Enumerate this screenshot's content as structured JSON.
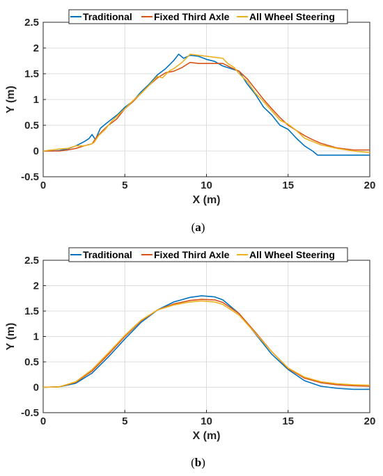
{
  "chart_data": [
    {
      "type": "line",
      "caption_pre": "(",
      "caption_letter": "a",
      "caption_post": ")",
      "xlabel": "X (m)",
      "ylabel": "Y (m)",
      "xlim": [
        0,
        20
      ],
      "ylim": [
        -0.5,
        2.5
      ],
      "xticks": [
        "0",
        "5",
        "10",
        "15",
        "20"
      ],
      "yticks": [
        "-0.5",
        "0",
        "0.5",
        "1",
        "1.5",
        "2",
        "2.5"
      ],
      "grid": true,
      "legend_position": "top",
      "series": [
        {
          "name": "Traditional",
          "color": "#0072BD",
          "x": [
            0,
            0.5,
            1,
            1.5,
            2,
            2.5,
            2.8,
            3.0,
            3.2,
            3.5,
            3.8,
            4.2,
            4.6,
            5.0,
            5.5,
            6.0,
            6.5,
            7.0,
            7.5,
            8.0,
            8.3,
            8.6,
            9.0,
            9.5,
            10.0,
            10.5,
            11.0,
            11.5,
            12.0,
            12.5,
            13.0,
            13.5,
            14.0,
            14.5,
            15.0,
            15.5,
            16.0,
            16.5,
            16.8,
            17.5,
            18.5,
            20
          ],
          "y": [
            0,
            0,
            0.01,
            0.04,
            0.1,
            0.18,
            0.24,
            0.32,
            0.22,
            0.44,
            0.52,
            0.62,
            0.72,
            0.85,
            0.97,
            1.15,
            1.3,
            1.48,
            1.6,
            1.76,
            1.88,
            1.8,
            1.86,
            1.84,
            1.78,
            1.74,
            1.65,
            1.6,
            1.55,
            1.3,
            1.1,
            0.85,
            0.7,
            0.5,
            0.42,
            0.25,
            0.1,
            0,
            -0.08,
            -0.08,
            -0.08,
            -0.08
          ]
        },
        {
          "name": "Fixed Third Axle",
          "color": "#D95319",
          "x": [
            0,
            0.5,
            1,
            1.5,
            2,
            2.5,
            3.0,
            3.3,
            3.6,
            4.0,
            4.5,
            5.0,
            5.5,
            6.0,
            6.5,
            7.0,
            7.5,
            8.0,
            8.5,
            9.0,
            9.5,
            10.0,
            10.5,
            11.0,
            11.5,
            12.0,
            12.5,
            13.0,
            13.5,
            14.0,
            14.5,
            15.0,
            15.5,
            16.0,
            16.5,
            17.0,
            18.0,
            19.0,
            20
          ],
          "y": [
            0,
            0,
            0,
            0.02,
            0.05,
            0.1,
            0.14,
            0.28,
            0.38,
            0.5,
            0.62,
            0.82,
            0.96,
            1.12,
            1.28,
            1.42,
            1.52,
            1.55,
            1.62,
            1.72,
            1.7,
            1.7,
            1.7,
            1.7,
            1.62,
            1.55,
            1.4,
            1.2,
            1.0,
            0.82,
            0.65,
            0.5,
            0.4,
            0.3,
            0.22,
            0.15,
            0.06,
            0.02,
            0.02
          ]
        },
        {
          "name": "All Wheel Steering",
          "color": "#EDB120",
          "x": [
            0,
            0.5,
            1,
            1.5,
            2,
            2.5,
            2.8,
            3.1,
            3.4,
            3.8,
            4.2,
            4.6,
            5.0,
            5.5,
            6.0,
            6.5,
            7.0,
            7.3,
            7.7,
            8.0,
            8.5,
            9.0,
            9.5,
            10.0,
            10.5,
            11.0,
            11.3,
            11.7,
            12.0,
            12.5,
            13.0,
            13.5,
            14.0,
            14.5,
            15.0,
            15.5,
            16.0,
            17.0,
            18.0,
            19.0,
            20
          ],
          "y": [
            0,
            0.02,
            0.04,
            0.05,
            0.1,
            0.1,
            0.12,
            0.16,
            0.3,
            0.42,
            0.58,
            0.7,
            0.82,
            0.98,
            1.12,
            1.28,
            1.45,
            1.42,
            1.55,
            1.6,
            1.72,
            1.88,
            1.86,
            1.84,
            1.82,
            1.8,
            1.7,
            1.62,
            1.5,
            1.35,
            1.12,
            0.96,
            0.78,
            0.6,
            0.52,
            0.4,
            0.25,
            0.12,
            0.05,
            0.0,
            -0.03
          ]
        }
      ]
    },
    {
      "type": "line",
      "caption_pre": "(",
      "caption_letter": "b",
      "caption_post": ")",
      "xlabel": "X (m)",
      "ylabel": "Y (m)",
      "xlim": [
        0,
        20
      ],
      "ylim": [
        -0.5,
        2.5
      ],
      "xticks": [
        "0",
        "5",
        "10",
        "15",
        "20"
      ],
      "yticks": [
        "-0.5",
        "0",
        "0.5",
        "1",
        "1.5",
        "2",
        "2.5"
      ],
      "grid": true,
      "legend_position": "top",
      "series": [
        {
          "name": "Traditional",
          "color": "#0072BD",
          "x": [
            0,
            1,
            2,
            3,
            4,
            5,
            6,
            7,
            8,
            9,
            9.7,
            10.5,
            11,
            12,
            13,
            14,
            15,
            16,
            17,
            18,
            19,
            20
          ],
          "y": [
            0,
            0.01,
            0.08,
            0.28,
            0.6,
            0.95,
            1.28,
            1.52,
            1.68,
            1.77,
            1.8,
            1.78,
            1.72,
            1.45,
            1.05,
            0.65,
            0.35,
            0.13,
            0.02,
            -0.02,
            -0.04,
            -0.04
          ]
        },
        {
          "name": "Fixed Third Axle",
          "color": "#D95319",
          "x": [
            0,
            1,
            2,
            3,
            4,
            5,
            6,
            7,
            8,
            9,
            9.7,
            10.5,
            11,
            12,
            13,
            14,
            15,
            16,
            17,
            18,
            19,
            20
          ],
          "y": [
            0,
            0.01,
            0.1,
            0.32,
            0.65,
            1.0,
            1.31,
            1.52,
            1.64,
            1.71,
            1.73,
            1.72,
            1.67,
            1.45,
            1.08,
            0.7,
            0.37,
            0.18,
            0.09,
            0.05,
            0.03,
            0.02
          ]
        },
        {
          "name": "All Wheel Steering",
          "color": "#EDB120",
          "x": [
            0,
            1,
            2,
            3,
            4,
            5,
            6,
            7,
            8,
            9,
            9.7,
            10.5,
            11,
            12,
            13,
            14,
            15,
            16,
            17,
            18,
            19,
            20
          ],
          "y": [
            0,
            0.01,
            0.11,
            0.35,
            0.68,
            1.02,
            1.32,
            1.52,
            1.62,
            1.68,
            1.7,
            1.68,
            1.63,
            1.42,
            1.06,
            0.7,
            0.38,
            0.2,
            0.11,
            0.07,
            0.05,
            0.04
          ]
        }
      ]
    }
  ]
}
